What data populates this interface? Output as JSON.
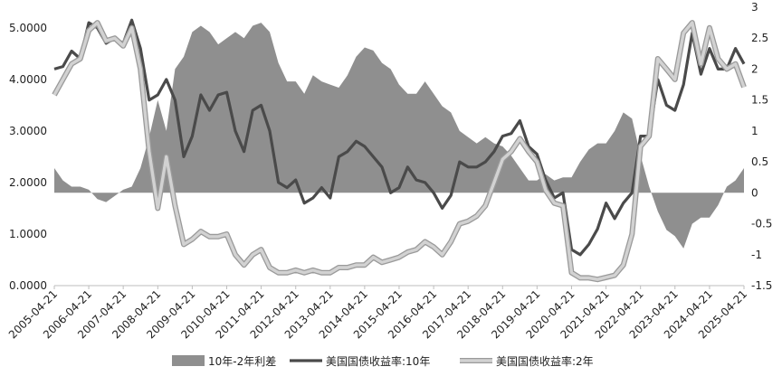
{
  "chart_data": {
    "type": "combo",
    "title": "",
    "x": {
      "tick_labels": [
        "2005-04-21",
        "2006-04-21",
        "2007-04-21",
        "2008-04-21",
        "2009-04-21",
        "2010-04-21",
        "2011-04-21",
        "2012-04-21",
        "2013-04-21",
        "2014-04-21",
        "2015-04-21",
        "2016-04-21",
        "2017-04-21",
        "2018-04-21",
        "2019-04-21",
        "2020-04-21",
        "2021-04-21",
        "2022-04-21",
        "2023-04-21",
        "2024-04-21",
        "2025-04-21"
      ],
      "range": [
        "2005-04-21",
        "2025-04-21"
      ]
    },
    "y_left": {
      "ticks": [
        "0.0000",
        "1.0000",
        "2.0000",
        "3.0000",
        "4.0000",
        "5.0000"
      ],
      "range": [
        0,
        5.4
      ]
    },
    "y_right": {
      "ticks": [
        "-1.5",
        "-1",
        "-0.5",
        "0",
        "0.5",
        "1",
        "1.5",
        "2",
        "2.5",
        "3"
      ],
      "range": [
        -1.5,
        3
      ]
    },
    "grid": false,
    "legend_position": "bottom",
    "series": [
      {
        "name": "10年-2年利差",
        "type": "area",
        "axis": "right",
        "color": "#8f8f8f",
        "x": [
          "2005-04-21",
          "2005-07-21",
          "2005-10-21",
          "2006-01-21",
          "2006-04-21",
          "2006-07-21",
          "2006-10-21",
          "2007-01-21",
          "2007-04-21",
          "2007-07-21",
          "2007-10-21",
          "2008-01-21",
          "2008-04-21",
          "2008-07-21",
          "2008-10-21",
          "2009-01-21",
          "2009-04-21",
          "2009-07-21",
          "2009-10-21",
          "2010-01-21",
          "2010-04-21",
          "2010-07-21",
          "2010-10-21",
          "2011-01-21",
          "2011-04-21",
          "2011-07-21",
          "2011-10-21",
          "2012-01-21",
          "2012-04-21",
          "2012-07-21",
          "2012-10-21",
          "2013-01-21",
          "2013-04-21",
          "2013-07-21",
          "2013-10-21",
          "2014-01-21",
          "2014-04-21",
          "2014-07-21",
          "2014-10-21",
          "2015-01-21",
          "2015-04-21",
          "2015-07-21",
          "2015-10-21",
          "2016-01-21",
          "2016-04-21",
          "2016-07-21",
          "2016-10-21",
          "2017-01-21",
          "2017-04-21",
          "2017-07-21",
          "2017-10-21",
          "2018-01-21",
          "2018-04-21",
          "2018-07-21",
          "2018-10-21",
          "2019-01-21",
          "2019-04-21",
          "2019-07-21",
          "2019-10-21",
          "2020-01-21",
          "2020-04-21",
          "2020-07-21",
          "2020-10-21",
          "2021-01-21",
          "2021-04-21",
          "2021-07-21",
          "2021-10-21",
          "2022-01-21",
          "2022-04-21",
          "2022-07-21",
          "2022-10-21",
          "2023-01-21",
          "2023-04-21",
          "2023-07-21",
          "2023-10-21",
          "2024-01-21",
          "2024-04-21",
          "2024-07-21",
          "2024-10-21",
          "2025-01-21",
          "2025-04-21"
        ],
        "values": [
          0.4,
          0.2,
          0.1,
          0.1,
          0.05,
          -0.1,
          -0.15,
          -0.05,
          0.05,
          0.1,
          0.4,
          0.9,
          1.5,
          1.0,
          2.0,
          2.2,
          2.6,
          2.7,
          2.6,
          2.4,
          2.5,
          2.6,
          2.5,
          2.7,
          2.75,
          2.6,
          2.1,
          1.8,
          1.8,
          1.6,
          1.9,
          1.8,
          1.75,
          1.7,
          1.9,
          2.2,
          2.35,
          2.3,
          2.1,
          2.0,
          1.75,
          1.6,
          1.6,
          1.8,
          1.6,
          1.4,
          1.3,
          1.0,
          0.9,
          0.8,
          0.9,
          0.8,
          0.75,
          0.6,
          0.4,
          0.2,
          0.2,
          0.3,
          0.2,
          0.25,
          0.25,
          0.5,
          0.7,
          0.8,
          0.8,
          1.0,
          1.3,
          1.2,
          0.6,
          0.1,
          -0.3,
          -0.6,
          -0.7,
          -0.9,
          -0.5,
          -0.4,
          -0.4,
          -0.2,
          0.1,
          0.2,
          0.4
        ]
      },
      {
        "name": "美国国债收益率:10年",
        "type": "line",
        "axis": "left",
        "color": "#4a4a4a",
        "x": [
          "2005-04-21",
          "2005-07-21",
          "2005-10-21",
          "2006-01-21",
          "2006-04-21",
          "2006-07-21",
          "2006-10-21",
          "2007-01-21",
          "2007-04-21",
          "2007-07-21",
          "2007-10-21",
          "2008-01-21",
          "2008-04-21",
          "2008-07-21",
          "2008-10-21",
          "2009-01-21",
          "2009-04-21",
          "2009-07-21",
          "2009-10-21",
          "2010-01-21",
          "2010-04-21",
          "2010-07-21",
          "2010-10-21",
          "2011-01-21",
          "2011-04-21",
          "2011-07-21",
          "2011-10-21",
          "2012-01-21",
          "2012-04-21",
          "2012-07-21",
          "2012-10-21",
          "2013-01-21",
          "2013-04-21",
          "2013-07-21",
          "2013-10-21",
          "2014-01-21",
          "2014-04-21",
          "2014-07-21",
          "2014-10-21",
          "2015-01-21",
          "2015-04-21",
          "2015-07-21",
          "2015-10-21",
          "2016-01-21",
          "2016-04-21",
          "2016-07-21",
          "2016-10-21",
          "2017-01-21",
          "2017-04-21",
          "2017-07-21",
          "2017-10-21",
          "2018-01-21",
          "2018-04-21",
          "2018-07-21",
          "2018-10-21",
          "2019-01-21",
          "2019-04-21",
          "2019-07-21",
          "2019-10-21",
          "2020-01-21",
          "2020-04-21",
          "2020-07-21",
          "2020-10-21",
          "2021-01-21",
          "2021-04-21",
          "2021-07-21",
          "2021-10-21",
          "2022-01-21",
          "2022-04-21",
          "2022-07-21",
          "2022-10-21",
          "2023-01-21",
          "2023-04-21",
          "2023-07-21",
          "2023-10-21",
          "2024-01-21",
          "2024-04-21",
          "2024-07-21",
          "2024-10-21",
          "2025-01-21",
          "2025-04-21"
        ],
        "values": [
          4.2,
          4.25,
          4.55,
          4.4,
          5.1,
          5.0,
          4.7,
          4.8,
          4.7,
          5.15,
          4.6,
          3.6,
          3.7,
          4.0,
          3.6,
          2.5,
          2.9,
          3.7,
          3.4,
          3.7,
          3.75,
          3.0,
          2.6,
          3.4,
          3.5,
          3.0,
          2.0,
          1.9,
          2.05,
          1.6,
          1.7,
          1.9,
          1.7,
          2.5,
          2.6,
          2.8,
          2.7,
          2.5,
          2.3,
          1.8,
          1.9,
          2.3,
          2.05,
          2.0,
          1.8,
          1.5,
          1.75,
          2.4,
          2.3,
          2.3,
          2.4,
          2.6,
          2.9,
          2.95,
          3.2,
          2.7,
          2.55,
          2.05,
          1.7,
          1.8,
          0.7,
          0.6,
          0.8,
          1.1,
          1.6,
          1.3,
          1.6,
          1.8,
          2.9,
          2.9,
          4.0,
          3.5,
          3.4,
          3.9,
          4.9,
          4.1,
          4.6,
          4.2,
          4.2,
          4.6,
          4.3
        ]
      },
      {
        "name": "美国国债收益率:2年",
        "type": "line",
        "axis": "left",
        "color": "#d2d2d2",
        "x": [
          "2005-04-21",
          "2005-07-21",
          "2005-10-21",
          "2006-01-21",
          "2006-04-21",
          "2006-07-21",
          "2006-10-21",
          "2007-01-21",
          "2007-04-21",
          "2007-07-21",
          "2007-10-21",
          "2008-01-21",
          "2008-04-21",
          "2008-07-21",
          "2008-10-21",
          "2009-01-21",
          "2009-04-21",
          "2009-07-21",
          "2009-10-21",
          "2010-01-21",
          "2010-04-21",
          "2010-07-21",
          "2010-10-21",
          "2011-01-21",
          "2011-04-21",
          "2011-07-21",
          "2011-10-21",
          "2012-01-21",
          "2012-04-21",
          "2012-07-21",
          "2012-10-21",
          "2013-01-21",
          "2013-04-21",
          "2013-07-21",
          "2013-10-21",
          "2014-01-21",
          "2014-04-21",
          "2014-07-21",
          "2014-10-21",
          "2015-01-21",
          "2015-04-21",
          "2015-07-21",
          "2015-10-21",
          "2016-01-21",
          "2016-04-21",
          "2016-07-21",
          "2016-10-21",
          "2017-01-21",
          "2017-04-21",
          "2017-07-21",
          "2017-10-21",
          "2018-01-21",
          "2018-04-21",
          "2018-07-21",
          "2018-10-21",
          "2019-01-21",
          "2019-04-21",
          "2019-07-21",
          "2019-10-21",
          "2020-01-21",
          "2020-04-21",
          "2020-07-21",
          "2020-10-21",
          "2021-01-21",
          "2021-04-21",
          "2021-07-21",
          "2021-10-21",
          "2022-01-21",
          "2022-04-21",
          "2022-07-21",
          "2022-10-21",
          "2023-01-21",
          "2023-04-21",
          "2023-07-21",
          "2023-10-21",
          "2024-01-21",
          "2024-04-21",
          "2024-07-21",
          "2024-10-21",
          "2025-01-21",
          "2025-04-21"
        ],
        "values": [
          3.7,
          4.0,
          4.3,
          4.4,
          4.95,
          5.1,
          4.75,
          4.8,
          4.65,
          5.0,
          4.2,
          2.6,
          1.5,
          2.5,
          1.55,
          0.8,
          0.9,
          1.05,
          0.95,
          0.95,
          1.0,
          0.6,
          0.4,
          0.6,
          0.7,
          0.35,
          0.25,
          0.25,
          0.3,
          0.25,
          0.3,
          0.25,
          0.25,
          0.35,
          0.35,
          0.4,
          0.4,
          0.55,
          0.45,
          0.5,
          0.55,
          0.65,
          0.7,
          0.85,
          0.75,
          0.6,
          0.85,
          1.2,
          1.25,
          1.35,
          1.55,
          2.0,
          2.45,
          2.6,
          2.85,
          2.6,
          2.4,
          1.85,
          1.6,
          1.55,
          0.25,
          0.15,
          0.15,
          0.12,
          0.16,
          0.2,
          0.4,
          1.0,
          2.7,
          2.9,
          4.4,
          4.2,
          4.0,
          4.9,
          5.1,
          4.3,
          5.0,
          4.4,
          4.2,
          4.3,
          3.85
        ]
      }
    ]
  }
}
